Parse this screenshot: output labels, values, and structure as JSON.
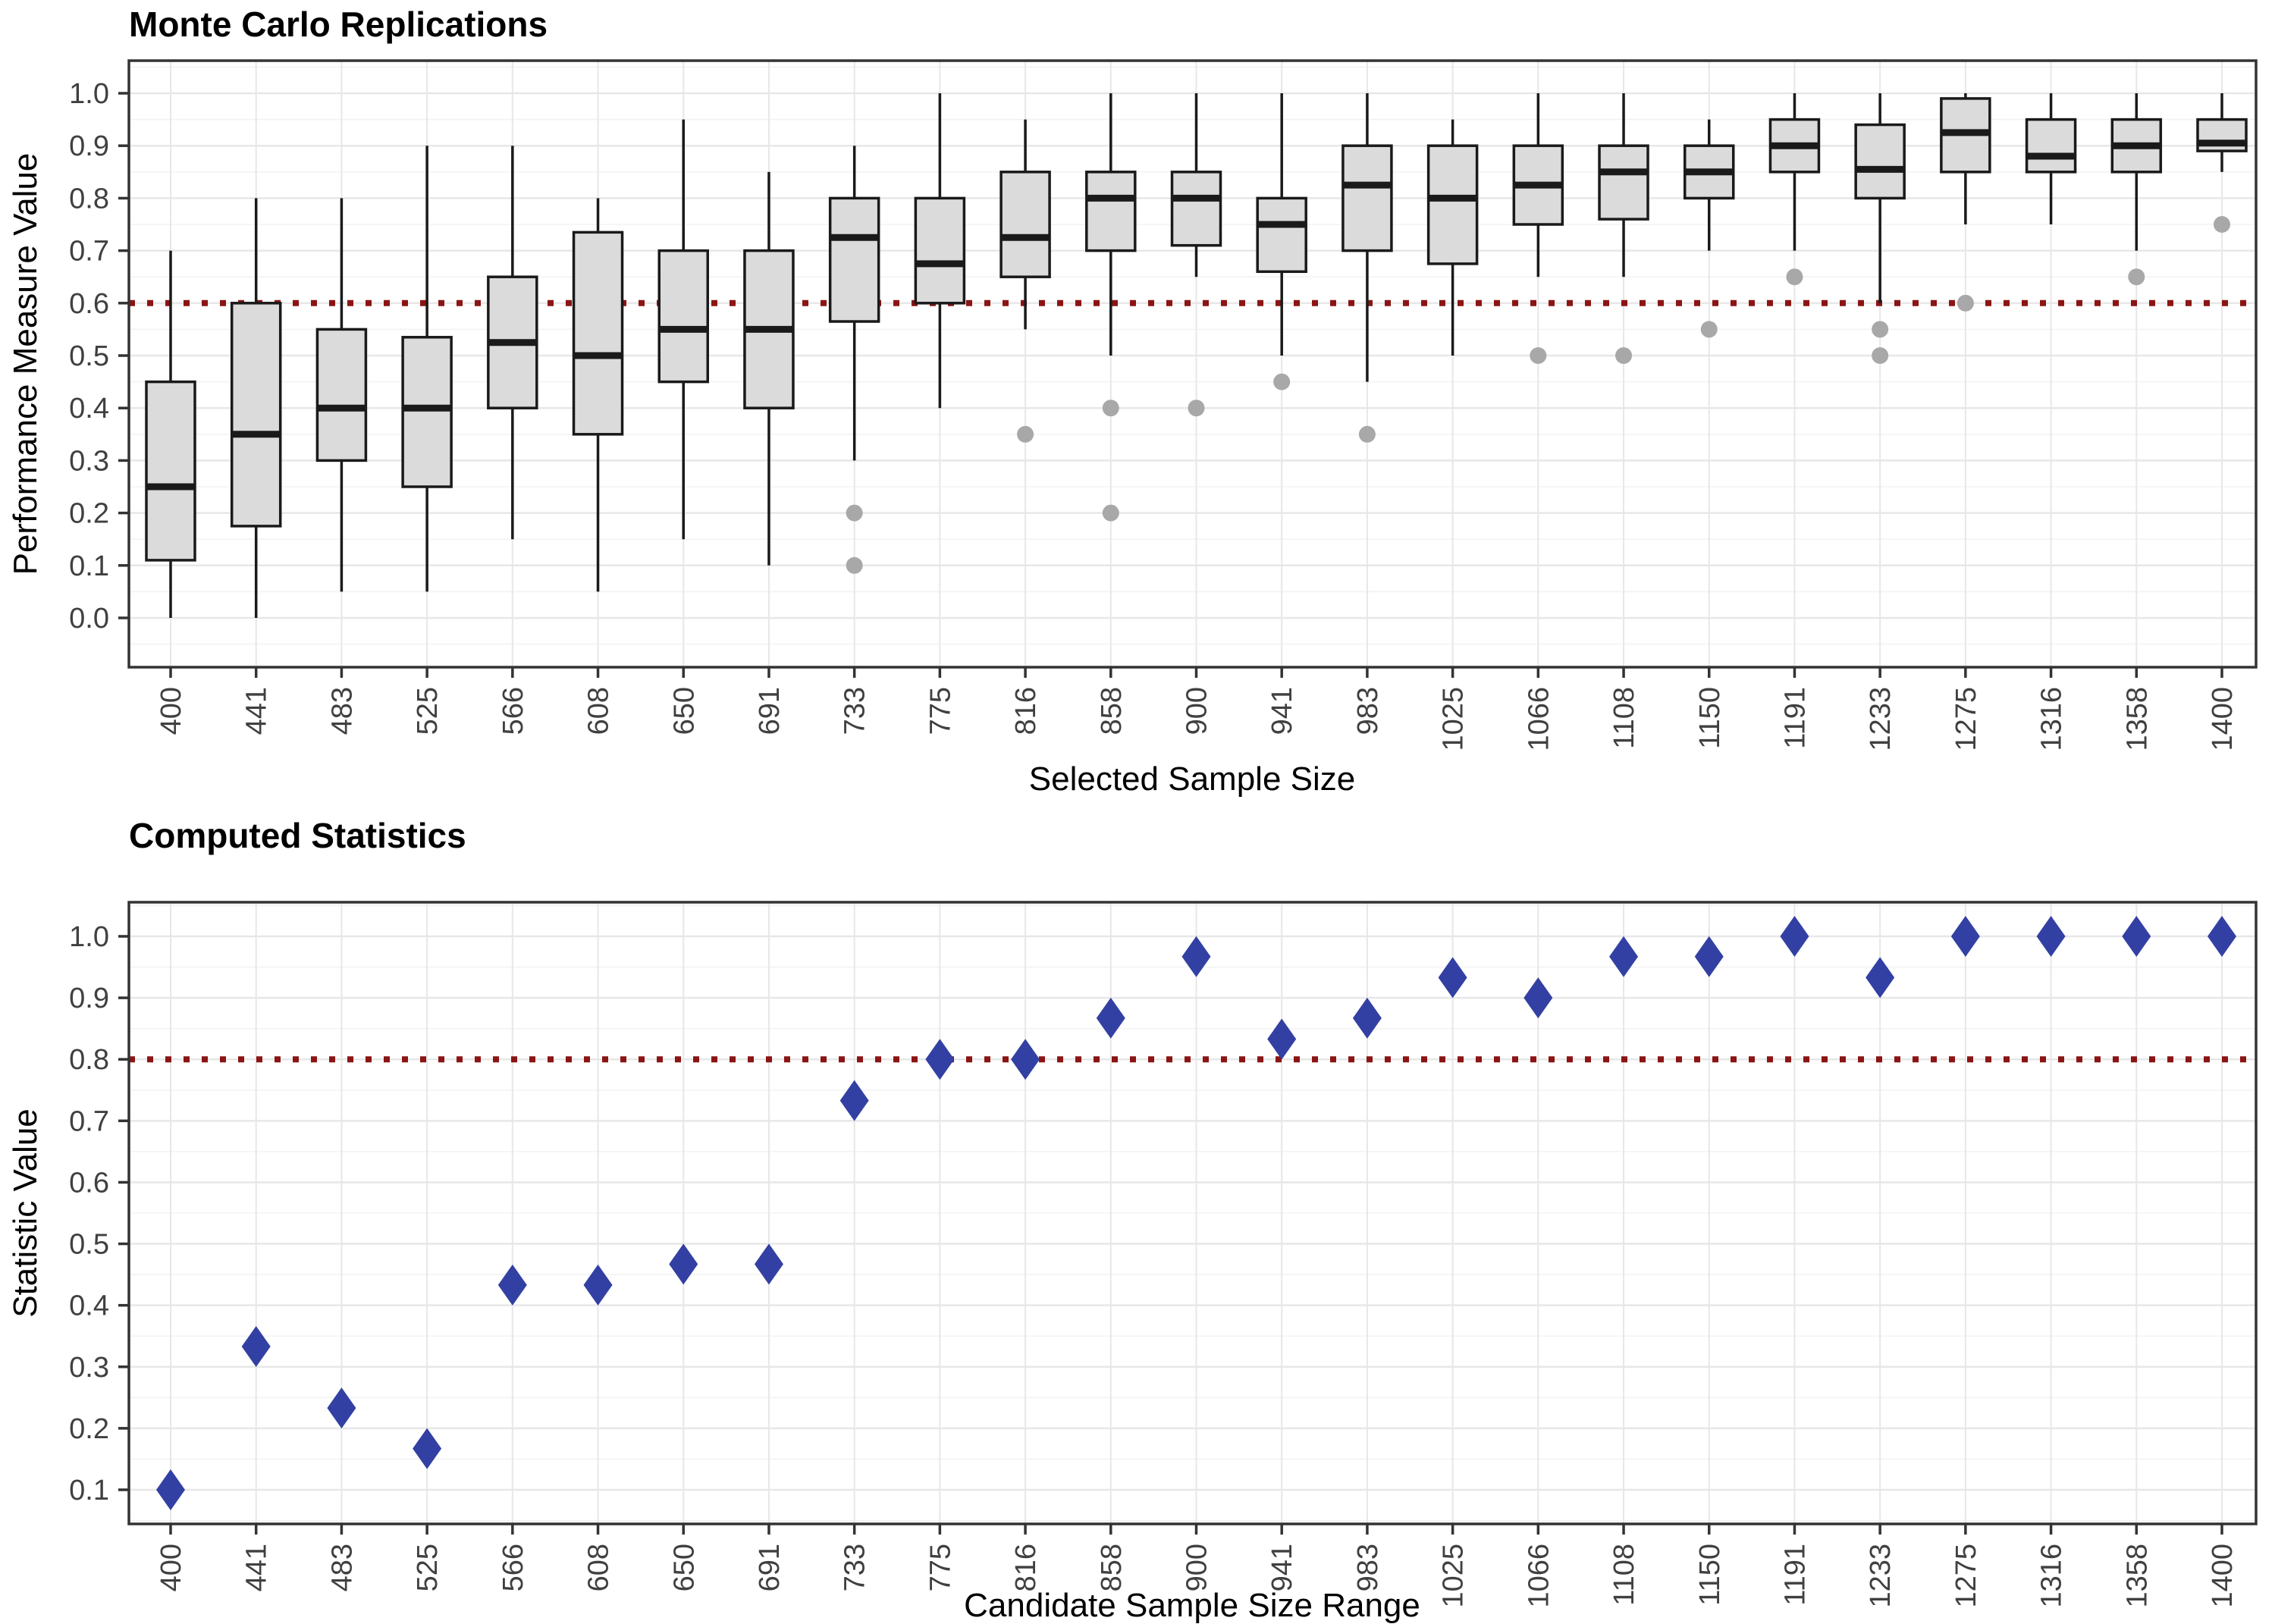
{
  "figure": {
    "background": "#ffffff"
  },
  "styles": {
    "panel_background": "#ffffff",
    "panel_border": "#333333",
    "grid_major": "#e7e7e7",
    "grid_minor": "#f3f3f3",
    "box_fill": "#dbdbdb",
    "box_stroke": "#1a1a1a",
    "outlier_color": "#a8a8a8",
    "refline_color": "#8b1414",
    "diamond_color": "#3340a3",
    "tick_label_color": "#404040"
  },
  "chart_data": [
    {
      "type": "box",
      "title": "Monte Carlo Replications",
      "xlabel": "Selected Sample Size",
      "ylabel": "Performance Measure Value",
      "ylim": [
        0.0,
        1.0
      ],
      "yticks": [
        0.0,
        0.1,
        0.2,
        0.3,
        0.4,
        0.5,
        0.6,
        0.7,
        0.8,
        0.9,
        1.0
      ],
      "grid": true,
      "reference_line": 0.6,
      "categories": [
        "400",
        "441",
        "483",
        "525",
        "566",
        "608",
        "650",
        "691",
        "733",
        "775",
        "816",
        "858",
        "900",
        "941",
        "983",
        "1025",
        "1066",
        "1108",
        "1150",
        "1191",
        "1233",
        "1275",
        "1316",
        "1358",
        "1400"
      ],
      "boxes": [
        {
          "category": "400",
          "whisker_low": 0.0,
          "q1": 0.11,
          "median": 0.25,
          "q3": 0.45,
          "whisker_high": 0.7,
          "outliers": []
        },
        {
          "category": "441",
          "whisker_low": 0.0,
          "q1": 0.175,
          "median": 0.35,
          "q3": 0.6,
          "whisker_high": 0.8,
          "outliers": []
        },
        {
          "category": "483",
          "whisker_low": 0.05,
          "q1": 0.3,
          "median": 0.4,
          "q3": 0.55,
          "whisker_high": 0.8,
          "outliers": []
        },
        {
          "category": "525",
          "whisker_low": 0.05,
          "q1": 0.25,
          "median": 0.4,
          "q3": 0.535,
          "whisker_high": 0.9,
          "outliers": []
        },
        {
          "category": "566",
          "whisker_low": 0.15,
          "q1": 0.4,
          "median": 0.525,
          "q3": 0.65,
          "whisker_high": 0.9,
          "outliers": []
        },
        {
          "category": "608",
          "whisker_low": 0.05,
          "q1": 0.35,
          "median": 0.5,
          "q3": 0.735,
          "whisker_high": 0.8,
          "outliers": []
        },
        {
          "category": "650",
          "whisker_low": 0.15,
          "q1": 0.45,
          "median": 0.55,
          "q3": 0.7,
          "whisker_high": 0.95,
          "outliers": []
        },
        {
          "category": "691",
          "whisker_low": 0.1,
          "q1": 0.4,
          "median": 0.55,
          "q3": 0.7,
          "whisker_high": 0.85,
          "outliers": []
        },
        {
          "category": "733",
          "whisker_low": 0.3,
          "q1": 0.565,
          "median": 0.725,
          "q3": 0.8,
          "whisker_high": 0.9,
          "outliers": [
            0.2,
            0.1
          ]
        },
        {
          "category": "775",
          "whisker_low": 0.4,
          "q1": 0.6,
          "median": 0.675,
          "q3": 0.8,
          "whisker_high": 1.0,
          "outliers": []
        },
        {
          "category": "816",
          "whisker_low": 0.55,
          "q1": 0.65,
          "median": 0.725,
          "q3": 0.85,
          "whisker_high": 0.95,
          "outliers": [
            0.35
          ]
        },
        {
          "category": "858",
          "whisker_low": 0.5,
          "q1": 0.7,
          "median": 0.8,
          "q3": 0.85,
          "whisker_high": 1.0,
          "outliers": [
            0.4,
            0.2
          ]
        },
        {
          "category": "900",
          "whisker_low": 0.65,
          "q1": 0.71,
          "median": 0.8,
          "q3": 0.85,
          "whisker_high": 1.0,
          "outliers": [
            0.4
          ]
        },
        {
          "category": "941",
          "whisker_low": 0.5,
          "q1": 0.66,
          "median": 0.75,
          "q3": 0.8,
          "whisker_high": 1.0,
          "outliers": [
            0.45
          ]
        },
        {
          "category": "983",
          "whisker_low": 0.45,
          "q1": 0.7,
          "median": 0.825,
          "q3": 0.9,
          "whisker_high": 1.0,
          "outliers": [
            0.35
          ]
        },
        {
          "category": "1025",
          "whisker_low": 0.5,
          "q1": 0.675,
          "median": 0.8,
          "q3": 0.9,
          "whisker_high": 0.95,
          "outliers": []
        },
        {
          "category": "1066",
          "whisker_low": 0.65,
          "q1": 0.75,
          "median": 0.825,
          "q3": 0.9,
          "whisker_high": 1.0,
          "outliers": [
            0.5
          ]
        },
        {
          "category": "1108",
          "whisker_low": 0.65,
          "q1": 0.76,
          "median": 0.85,
          "q3": 0.9,
          "whisker_high": 1.0,
          "outliers": [
            0.5
          ]
        },
        {
          "category": "1150",
          "whisker_low": 0.7,
          "q1": 0.8,
          "median": 0.85,
          "q3": 0.9,
          "whisker_high": 0.95,
          "outliers": [
            0.55
          ]
        },
        {
          "category": "1191",
          "whisker_low": 0.7,
          "q1": 0.85,
          "median": 0.9,
          "q3": 0.95,
          "whisker_high": 1.0,
          "outliers": [
            0.65
          ]
        },
        {
          "category": "1233",
          "whisker_low": 0.6,
          "q1": 0.8,
          "median": 0.855,
          "q3": 0.94,
          "whisker_high": 1.0,
          "outliers": [
            0.55,
            0.5
          ]
        },
        {
          "category": "1275",
          "whisker_low": 0.75,
          "q1": 0.85,
          "median": 0.925,
          "q3": 0.99,
          "whisker_high": 1.0,
          "outliers": [
            0.6
          ]
        },
        {
          "category": "1316",
          "whisker_low": 0.75,
          "q1": 0.85,
          "median": 0.88,
          "q3": 0.95,
          "whisker_high": 1.0,
          "outliers": []
        },
        {
          "category": "1358",
          "whisker_low": 0.7,
          "q1": 0.85,
          "median": 0.9,
          "q3": 0.95,
          "whisker_high": 1.0,
          "outliers": [
            0.65
          ]
        },
        {
          "category": "1400",
          "whisker_low": 0.85,
          "q1": 0.89,
          "median": 0.905,
          "q3": 0.95,
          "whisker_high": 1.0,
          "outliers": [
            0.75
          ]
        }
      ]
    },
    {
      "type": "scatter",
      "title": "Computed Statistics",
      "xlabel": "Candidate Sample Size Range",
      "ylabel": "Statistic Value",
      "ylim": [
        0.05,
        1.05
      ],
      "yticks": [
        0.1,
        0.2,
        0.3,
        0.4,
        0.5,
        0.6,
        0.7,
        0.8,
        0.9,
        1.0
      ],
      "grid": true,
      "reference_line": 0.8,
      "marker": "diamond",
      "categories": [
        "400",
        "441",
        "483",
        "525",
        "566",
        "608",
        "650",
        "691",
        "733",
        "775",
        "816",
        "858",
        "900",
        "941",
        "983",
        "1025",
        "1066",
        "1108",
        "1150",
        "1191",
        "1233",
        "1275",
        "1316",
        "1358",
        "1400"
      ],
      "values": [
        0.1,
        0.333,
        0.233,
        0.167,
        0.433,
        0.433,
        0.467,
        0.467,
        0.733,
        0.8,
        0.8,
        0.867,
        0.967,
        0.833,
        0.867,
        0.933,
        0.9,
        0.967,
        0.967,
        1.0,
        0.933,
        1.0,
        1.0,
        1.0,
        1.0
      ]
    }
  ]
}
